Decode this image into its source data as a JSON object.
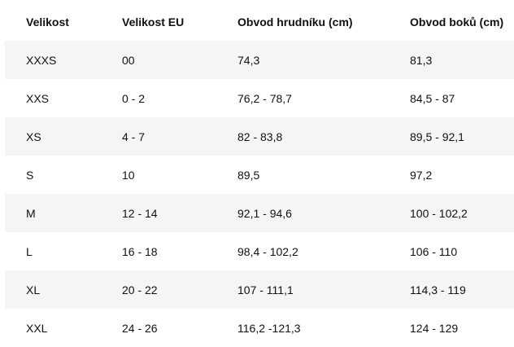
{
  "size_table": {
    "headers": [
      "Velikost",
      "Velikost EU",
      "Obvod hrudníku (cm)",
      "Obvod boků (cm)"
    ],
    "rows": [
      [
        "XXXS",
        "00",
        "74,3",
        "81,3"
      ],
      [
        "XXS",
        "0 - 2",
        "76,2 - 78,7",
        "84,5 - 87"
      ],
      [
        "XS",
        "4 - 7",
        "82 - 83,8",
        "89,5 - 92,1"
      ],
      [
        "S",
        "10",
        "89,5",
        "97,2"
      ],
      [
        "M",
        "12 - 14",
        "92,1 - 94,6",
        "100 - 102,2"
      ],
      [
        "L",
        "16 - 18",
        "98,4 - 102,2",
        "106 - 110"
      ],
      [
        "XL",
        "20 - 22",
        "107 - 111,1",
        "114,3 - 119"
      ],
      [
        "XXL",
        "24 - 26",
        "116,2 -121,3",
        "124 - 129"
      ]
    ],
    "stripe_color": "#f5f5f5"
  }
}
